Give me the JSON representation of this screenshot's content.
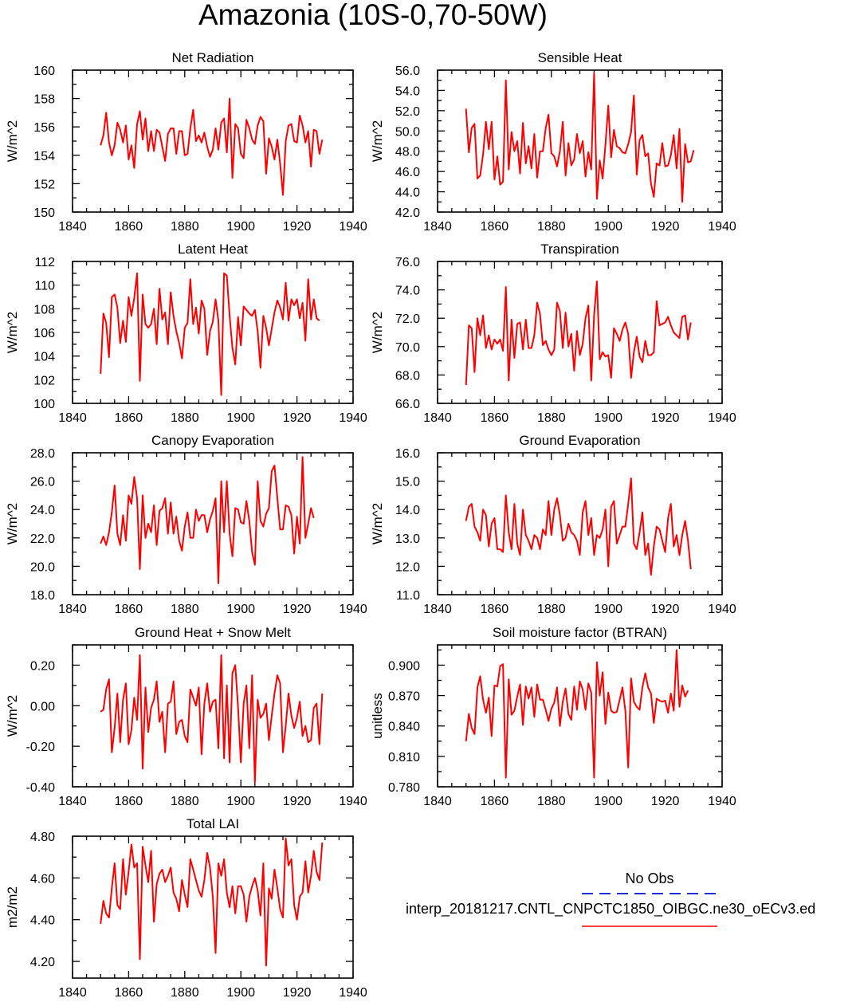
{
  "figure": {
    "title": "Amazonia (10S-0,70-50W)"
  },
  "legend": {
    "obs_label": "No Obs",
    "model_label": "interp_20181217.CNTL_CNPCTC1850_OIBGC.ne30_oECv3.ed",
    "obs_color": "#1f2fd6",
    "model_color": "#ff0000"
  },
  "chart_data": [
    {
      "type": "line",
      "title": "Net Radiation",
      "ylabel": "W/m^2",
      "xlim": [
        1840,
        1940
      ],
      "ylim": [
        150,
        160
      ],
      "x_ticks": [
        "1840",
        "1860",
        "1880",
        "1900",
        "1920",
        "1940"
      ],
      "y_ticks": [
        "150",
        "152",
        "154",
        "156",
        "158",
        "160"
      ],
      "x_start": 1850,
      "series": [
        {
          "name": "model",
          "color": "#ff0000",
          "values": [
            154.7,
            155.4,
            157.0,
            154.9,
            154.0,
            154.7,
            156.3,
            155.8,
            154.9,
            156.1,
            153.7,
            154.7,
            153.1,
            156.2,
            157.1,
            155.1,
            156.6,
            154.3,
            155.7,
            154.3,
            155.8,
            155.6,
            154.6,
            153.6,
            155.5,
            155.9,
            155.9,
            154.1,
            155.7,
            155.7,
            154.0,
            154.1,
            155.9,
            157.2,
            155.0,
            155.4,
            154.9,
            155.6,
            154.6,
            153.9,
            154.4,
            155.9,
            154.4,
            156.3,
            156.6,
            154.2,
            158.0,
            152.4,
            156.2,
            155.9,
            154.1,
            153.8,
            156.5,
            155.9,
            155.1,
            154.8,
            156.1,
            156.7,
            156.4,
            152.7,
            155.2,
            154.6,
            153.7,
            155.1,
            153.4,
            151.2,
            155.0,
            156.1,
            156.2,
            155.0,
            154.9,
            156.8,
            156.1,
            154.9,
            155.7,
            153.2,
            155.8,
            155.7,
            154.1,
            155.1
          ]
        }
      ]
    },
    {
      "type": "line",
      "title": "Sensible Heat",
      "ylabel": "W/m^2",
      "xlim": [
        1840,
        1940
      ],
      "ylim": [
        42,
        56
      ],
      "x_ticks": [
        "1840",
        "1860",
        "1880",
        "1900",
        "1920",
        "1940"
      ],
      "y_ticks": [
        "42.0",
        "44.0",
        "46.0",
        "48.0",
        "50.0",
        "52.0",
        "54.0",
        "56.0"
      ],
      "x_start": 1850,
      "series": [
        {
          "name": "model",
          "color": "#ff0000",
          "values": [
            52.2,
            47.9,
            50.3,
            50.7,
            45.3,
            45.6,
            47.7,
            50.9,
            48.2,
            50.9,
            45.2,
            47.5,
            44.7,
            45.0,
            55.0,
            46.2,
            49.9,
            48.0,
            49.0,
            45.8,
            50.8,
            46.8,
            48.5,
            46.3,
            49.7,
            45.4,
            48.0,
            48.0,
            50.3,
            51.6,
            47.8,
            47.5,
            46.5,
            48.0,
            50.9,
            45.6,
            48.8,
            46.6,
            47.2,
            49.7,
            47.8,
            49.0,
            45.5,
            47.9,
            46.2,
            55.7,
            43.3,
            47.1,
            45.3,
            48.6,
            52.5,
            47.4,
            50.1,
            48.5,
            48.3,
            47.9,
            47.8,
            48.7,
            49.9,
            53.5,
            45.7,
            49.1,
            49.6,
            47.5,
            47.8,
            44.8,
            43.5,
            46.8,
            46.6,
            48.8,
            46.5,
            46.6,
            47.6,
            49.6,
            46.3,
            50.2,
            43.0,
            48.7,
            46.9,
            47.0,
            48.1
          ]
        }
      ]
    },
    {
      "type": "line",
      "title": "Latent Heat",
      "ylabel": "W/m^2",
      "xlim": [
        1840,
        1940
      ],
      "ylim": [
        100,
        112
      ],
      "x_ticks": [
        "1840",
        "1860",
        "1880",
        "1900",
        "1920",
        "1940"
      ],
      "y_ticks": [
        "100",
        "102",
        "104",
        "106",
        "108",
        "110",
        "112"
      ],
      "x_start": 1850,
      "series": [
        {
          "name": "model",
          "color": "#ff0000",
          "values": [
            102.5,
            107.6,
            106.8,
            103.9,
            109.0,
            109.2,
            108.1,
            105.1,
            107.0,
            105.2,
            109.0,
            107.4,
            108.9,
            111.0,
            101.9,
            109.2,
            106.7,
            106.4,
            106.7,
            108.0,
            105.0,
            109.7,
            107.1,
            107.7,
            105.0,
            109.4,
            107.4,
            106.1,
            105.1,
            103.8,
            106.4,
            106.8,
            110.5,
            106.7,
            108.1,
            105.9,
            108.7,
            108.0,
            104.1,
            106.1,
            106.9,
            108.8,
            107.0,
            100.7,
            111.0,
            110.8,
            107.4,
            104.7,
            103.3,
            107.3,
            104.9,
            108.2,
            107.9,
            107.6,
            107.4,
            107.9,
            106.1,
            103.0,
            107.4,
            106.4,
            104.9,
            106.3,
            107.7,
            108.7,
            108.1,
            107.1,
            110.2,
            107.0,
            108.8,
            108.3,
            108.8,
            107.2,
            108.5,
            105.3,
            110.5,
            107.1,
            108.8,
            107.2,
            107.0
          ]
        }
      ]
    },
    {
      "type": "line",
      "title": "Transpiration",
      "ylabel": "W/m^2",
      "xlim": [
        1840,
        1940
      ],
      "ylim": [
        66,
        76
      ],
      "x_ticks": [
        "1840",
        "1860",
        "1880",
        "1900",
        "1920",
        "1940"
      ],
      "y_ticks": [
        "66.0",
        "68.0",
        "70.0",
        "72.0",
        "74.0",
        "76.0"
      ],
      "x_start": 1850,
      "series": [
        {
          "name": "model",
          "color": "#ff0000",
          "values": [
            67.3,
            71.5,
            71.3,
            68.2,
            72.0,
            70.8,
            72.2,
            69.9,
            70.8,
            69.8,
            70.5,
            70.2,
            70.5,
            69.7,
            74.2,
            67.6,
            71.9,
            69.2,
            71.6,
            71.7,
            69.8,
            71.9,
            69.9,
            69.9,
            70.8,
            73.1,
            72.3,
            70.1,
            70.4,
            69.8,
            69.4,
            69.8,
            73.1,
            72.5,
            69.9,
            72.4,
            70.0,
            70.9,
            68.3,
            71.1,
            69.4,
            70.2,
            72.0,
            72.9,
            67.6,
            72.2,
            74.6,
            69.1,
            69.6,
            69.3,
            69.4,
            67.8,
            71.3,
            70.9,
            70.4,
            71.2,
            71.7,
            70.9,
            67.8,
            69.6,
            70.7,
            69.3,
            68.9,
            70.4,
            69.4,
            69.4,
            69.6,
            73.2,
            71.5,
            71.6,
            71.7,
            72.1,
            71.5,
            71.0,
            70.8,
            70.6,
            72.1,
            72.2,
            70.5,
            71.7
          ]
        }
      ]
    },
    {
      "type": "line",
      "title": "Canopy Evaporation",
      "ylabel": "W/m^2",
      "xlim": [
        1840,
        1940
      ],
      "ylim": [
        18,
        28
      ],
      "x_ticks": [
        "1840",
        "1860",
        "1880",
        "1900",
        "1920",
        "1940"
      ],
      "y_ticks": [
        "18.0",
        "20.0",
        "22.0",
        "24.0",
        "26.0",
        "28.0"
      ],
      "x_start": 1850,
      "series": [
        {
          "name": "model",
          "color": "#ff0000",
          "values": [
            21.6,
            22.1,
            21.5,
            22.4,
            23.8,
            25.7,
            22.3,
            21.5,
            23.6,
            21.8,
            25.0,
            24.4,
            26.3,
            24.8,
            19.8,
            25.0,
            22.0,
            23.0,
            22.4,
            24.3,
            21.5,
            23.9,
            24.1,
            24.8,
            22.3,
            24.5,
            22.3,
            23.5,
            21.8,
            21.1,
            22.8,
            23.8,
            22.0,
            22.0,
            24.0,
            23.2,
            23.6,
            23.6,
            22.4,
            23.3,
            23.9,
            24.8,
            18.8,
            26.0,
            22.4,
            26.0,
            22.3,
            20.7,
            24.1,
            24.0,
            23.1,
            23.0,
            24.6,
            23.2,
            21.0,
            20.1,
            26.0,
            23.2,
            22.8,
            23.7,
            24.1,
            26.7,
            27.1,
            24.8,
            22.6,
            22.6,
            24.3,
            24.2,
            23.6,
            20.9,
            23.5,
            21.6,
            27.7,
            22.0,
            23.0,
            24.1,
            23.4
          ]
        }
      ]
    },
    {
      "type": "line",
      "title": "Ground Evaporation",
      "ylabel": "W/m^2",
      "xlim": [
        1840,
        1940
      ],
      "ylim": [
        11,
        16
      ],
      "x_ticks": [
        "1840",
        "1860",
        "1880",
        "1900",
        "1920",
        "1940"
      ],
      "y_ticks": [
        "11.0",
        "12.0",
        "13.0",
        "14.0",
        "15.0",
        "16.0"
      ],
      "x_start": 1850,
      "series": [
        {
          "name": "model",
          "color": "#ff0000",
          "values": [
            13.6,
            14.1,
            14.2,
            13.4,
            13.2,
            12.9,
            14.0,
            13.8,
            12.7,
            13.5,
            13.7,
            12.6,
            12.6,
            12.5,
            14.5,
            13.2,
            12.6,
            14.2,
            12.8,
            12.4,
            14.0,
            13.1,
            12.9,
            12.6,
            13.1,
            13.0,
            12.6,
            13.3,
            13.1,
            14.3,
            13.1,
            14.0,
            14.4,
            13.8,
            12.9,
            13.0,
            13.5,
            13.2,
            13.1,
            12.9,
            12.4,
            13.9,
            14.3,
            13.1,
            13.7,
            12.4,
            13.1,
            13.0,
            13.3,
            14.0,
            12.0,
            14.1,
            14.3,
            12.8,
            13.1,
            13.4,
            13.4,
            14.2,
            15.1,
            12.8,
            12.6,
            13.2,
            13.9,
            12.4,
            12.8,
            11.7,
            12.7,
            13.4,
            13.3,
            12.9,
            12.5,
            13.7,
            14.2,
            12.7,
            13.1,
            12.4,
            13.1,
            13.6,
            12.9,
            11.9
          ]
        }
      ]
    },
    {
      "type": "line",
      "title": "Ground Heat + Snow Melt",
      "ylabel": "W/m^2",
      "xlim": [
        1840,
        1940
      ],
      "ylim": [
        -0.4,
        0.3
      ],
      "x_ticks": [
        "1840",
        "1860",
        "1880",
        "1900",
        "1920",
        "1940"
      ],
      "y_ticks": [
        "-0.40",
        "-0.20",
        "0.00",
        "0.20"
      ],
      "x_start": 1850,
      "series": [
        {
          "name": "model",
          "color": "#ff0000",
          "values": [
            -0.03,
            -0.02,
            0.08,
            0.13,
            -0.23,
            -0.11,
            0.06,
            -0.18,
            0.03,
            0.11,
            -0.19,
            -0.12,
            0.04,
            -0.07,
            0.25,
            -0.31,
            0.09,
            -0.13,
            -0.01,
            0.03,
            0.12,
            -0.08,
            -0.03,
            -0.23,
            0.01,
            0.02,
            0.12,
            -0.14,
            -0.08,
            -0.07,
            -0.15,
            -0.18,
            0.08,
            0.04,
            0.0,
            0.09,
            -0.24,
            0.01,
            0.11,
            -0.03,
            0.02,
            0.03,
            -0.21,
            0.25,
            -0.26,
            0.1,
            -0.28,
            0.16,
            0.2,
            -0.01,
            -0.28,
            0.01,
            0.1,
            -0.21,
            0.15,
            -0.38,
            0.03,
            -0.06,
            -0.04,
            0.01,
            -0.17,
            -0.05,
            0.06,
            0.15,
            0.11,
            -0.23,
            -0.1,
            0.06,
            -0.05,
            -0.11,
            -0.06,
            0.02,
            -0.15,
            -0.1,
            -0.18,
            -0.17,
            -0.01,
            0.01,
            -0.19,
            0.06
          ]
        }
      ]
    },
    {
      "type": "line",
      "title": "Soil moisture factor (BTRAN)",
      "ylabel": "unitless",
      "xlim": [
        1840,
        1940
      ],
      "ylim": [
        0.78,
        0.92
      ],
      "x_ticks": [
        "1840",
        "1860",
        "1880",
        "1900",
        "1920",
        "1940"
      ],
      "y_ticks": [
        "0.780",
        "0.810",
        "0.840",
        "0.870",
        "0.900"
      ],
      "x_start": 1850,
      "series": [
        {
          "name": "model",
          "color": "#ff0000",
          "values": [
            0.825,
            0.852,
            0.838,
            0.832,
            0.878,
            0.889,
            0.866,
            0.853,
            0.868,
            0.83,
            0.88,
            0.879,
            0.899,
            0.901,
            0.789,
            0.886,
            0.851,
            0.855,
            0.869,
            0.881,
            0.841,
            0.879,
            0.867,
            0.878,
            0.849,
            0.881,
            0.866,
            0.866,
            0.856,
            0.845,
            0.857,
            0.863,
            0.878,
            0.84,
            0.864,
            0.877,
            0.852,
            0.846,
            0.879,
            0.856,
            0.884,
            0.876,
            0.856,
            0.882,
            0.873,
            0.789,
            0.903,
            0.87,
            0.893,
            0.842,
            0.873,
            0.855,
            0.853,
            0.854,
            0.866,
            0.878,
            0.855,
            0.799,
            0.887,
            0.864,
            0.859,
            0.856,
            0.878,
            0.892,
            0.878,
            0.872,
            0.843,
            0.867,
            0.865,
            0.864,
            0.865,
            0.853,
            0.872,
            0.855,
            0.915,
            0.859,
            0.88,
            0.869,
            0.875
          ]
        }
      ]
    },
    {
      "type": "line",
      "title": "Total LAI",
      "ylabel": "m2/m2",
      "xlim": [
        1840,
        1940
      ],
      "ylim": [
        4.12,
        4.8
      ],
      "x_ticks": [
        "1840",
        "1860",
        "1880",
        "1900",
        "1920",
        "1940"
      ],
      "y_ticks": [
        "4.20",
        "4.40",
        "4.60",
        "4.80"
      ],
      "x_start": 1850,
      "series": [
        {
          "name": "model",
          "color": "#ff0000",
          "values": [
            4.38,
            4.49,
            4.43,
            4.41,
            4.55,
            4.67,
            4.47,
            4.45,
            4.69,
            4.52,
            4.63,
            4.76,
            4.65,
            4.67,
            4.21,
            4.75,
            4.66,
            4.58,
            4.73,
            4.39,
            4.57,
            4.62,
            4.64,
            4.58,
            4.61,
            4.65,
            4.53,
            4.5,
            4.44,
            4.59,
            4.52,
            4.46,
            4.69,
            4.64,
            4.59,
            4.54,
            4.51,
            4.59,
            4.72,
            4.65,
            4.51,
            4.24,
            4.67,
            4.61,
            4.69,
            4.53,
            4.46,
            4.56,
            4.43,
            4.56,
            4.56,
            4.52,
            4.39,
            4.51,
            4.56,
            4.6,
            4.54,
            4.42,
            4.67,
            4.18,
            4.55,
            4.5,
            4.64,
            4.55,
            4.45,
            4.41,
            4.79,
            4.66,
            4.69,
            4.47,
            4.4,
            4.51,
            4.53,
            4.68,
            4.53,
            4.61,
            4.73,
            4.63,
            4.59,
            4.77
          ]
        }
      ]
    }
  ]
}
